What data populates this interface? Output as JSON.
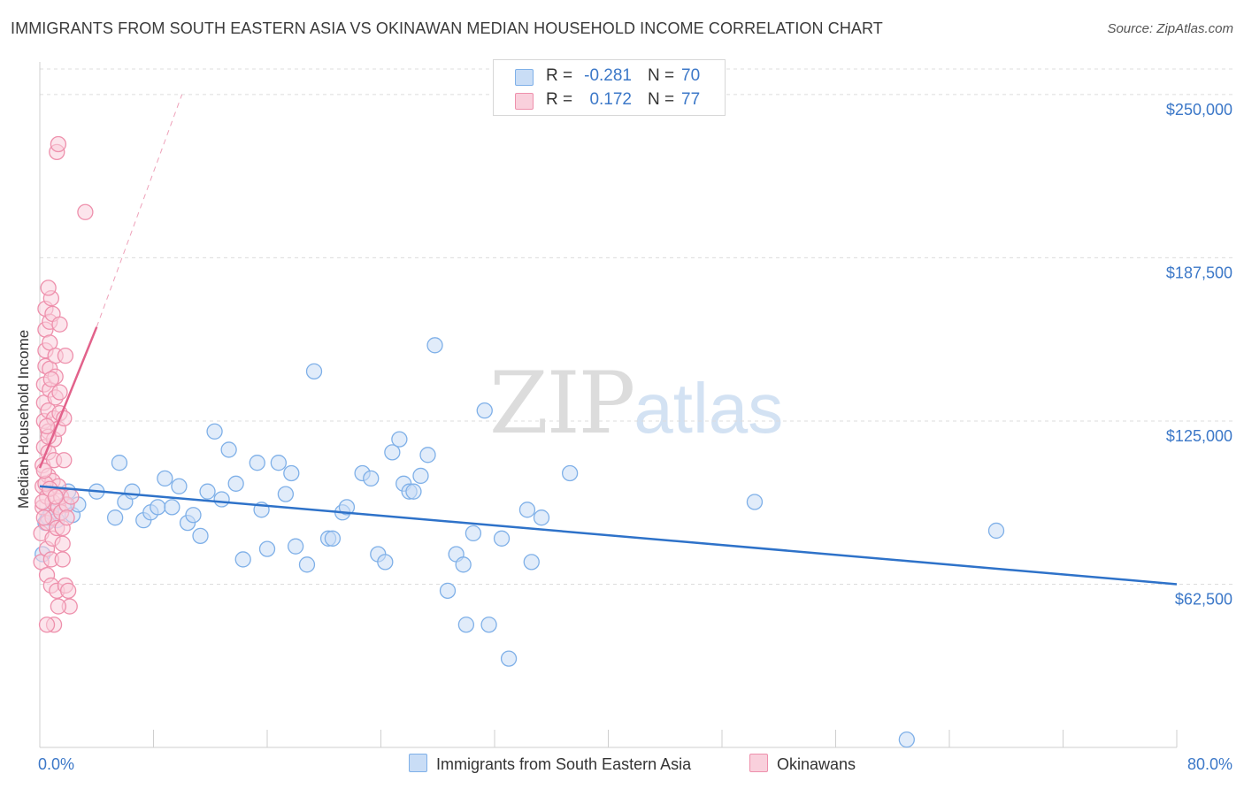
{
  "title": "IMMIGRANTS FROM SOUTH EASTERN ASIA VS OKINAWAN MEDIAN HOUSEHOLD INCOME CORRELATION CHART",
  "source": "Source: ZipAtlas.com",
  "watermark": {
    "zip": "ZIP",
    "atlas": "atlas"
  },
  "colors": {
    "blue": "#7fb0e8",
    "blue_fill": "#c9ddf6",
    "blue_line": "#2e72c9",
    "pink": "#ee90ac",
    "pink_fill": "#f9d0dc",
    "pink_line": "#e2628b",
    "accent_text": "#3c78c8"
  },
  "legend": {
    "rows": [
      {
        "r_label": "R =",
        "r_value": "-0.281",
        "n_label": "N =",
        "n_value": "70"
      },
      {
        "r_label": "R =",
        "r_value": "0.172",
        "n_label": "N =",
        "n_value": "77"
      }
    ]
  },
  "bottom_legend": [
    "Immigrants from South Eastern Asia",
    "Okinawans"
  ],
  "chart_data": {
    "type": "scatter",
    "xlabel": "",
    "ylabel": "Median Household Income",
    "xlim": [
      0,
      80
    ],
    "ylim": [
      0,
      262500
    ],
    "x_tick_labels": [
      "0.0%",
      "80.0%"
    ],
    "y_ticks": [
      62500,
      125000,
      187500,
      250000
    ],
    "y_tick_labels": [
      "$62,500",
      "$125,000",
      "$187,500",
      "$250,000"
    ],
    "grid": true,
    "legend_position": "top-center",
    "series": [
      {
        "name": "Immigrants from South Eastern Asia",
        "trend": {
          "x": [
            0,
            80
          ],
          "y": [
            100000,
            62500
          ],
          "style": "solid"
        },
        "points": [
          [
            0.2,
            74000
          ],
          [
            0.4,
            86000
          ],
          [
            0.6,
            88000
          ],
          [
            0.8,
            90000
          ],
          [
            1.2,
            87000
          ],
          [
            1.8,
            93000
          ],
          [
            2.0,
            98000
          ],
          [
            2.3,
            89000
          ],
          [
            2.7,
            93000
          ],
          [
            4.0,
            98000
          ],
          [
            5.3,
            88000
          ],
          [
            5.6,
            109000
          ],
          [
            6.0,
            94000
          ],
          [
            6.5,
            98000
          ],
          [
            7.3,
            87000
          ],
          [
            7.8,
            90000
          ],
          [
            8.3,
            92000
          ],
          [
            8.8,
            103000
          ],
          [
            9.3,
            92000
          ],
          [
            9.8,
            100000
          ],
          [
            10.4,
            86000
          ],
          [
            10.8,
            89000
          ],
          [
            11.3,
            81000
          ],
          [
            11.8,
            98000
          ],
          [
            12.3,
            121000
          ],
          [
            12.8,
            95000
          ],
          [
            13.3,
            114000
          ],
          [
            13.8,
            101000
          ],
          [
            14.3,
            72000
          ],
          [
            15.3,
            109000
          ],
          [
            15.6,
            91000
          ],
          [
            16.0,
            76000
          ],
          [
            16.8,
            109000
          ],
          [
            17.3,
            97000
          ],
          [
            17.7,
            105000
          ],
          [
            18.0,
            77000
          ],
          [
            18.8,
            70000
          ],
          [
            19.3,
            144000
          ],
          [
            20.3,
            80000
          ],
          [
            20.6,
            80000
          ],
          [
            21.3,
            90000
          ],
          [
            21.6,
            92000
          ],
          [
            22.7,
            105000
          ],
          [
            23.3,
            103000
          ],
          [
            23.8,
            74000
          ],
          [
            24.3,
            71000
          ],
          [
            24.8,
            113000
          ],
          [
            25.3,
            118000
          ],
          [
            25.6,
            101000
          ],
          [
            26.0,
            98000
          ],
          [
            26.3,
            98000
          ],
          [
            26.8,
            104000
          ],
          [
            27.3,
            112000
          ],
          [
            27.8,
            154000
          ],
          [
            28.7,
            60000
          ],
          [
            29.3,
            74000
          ],
          [
            29.8,
            70000
          ],
          [
            30.0,
            47000
          ],
          [
            30.5,
            82000
          ],
          [
            31.3,
            129000
          ],
          [
            31.6,
            47000
          ],
          [
            32.5,
            80000
          ],
          [
            33.0,
            34000
          ],
          [
            34.3,
            91000
          ],
          [
            34.6,
            71000
          ],
          [
            35.3,
            88000
          ],
          [
            37.3,
            105000
          ],
          [
            50.3,
            94000
          ],
          [
            67.3,
            83000
          ],
          [
            61.0,
            3000
          ]
        ]
      },
      {
        "name": "Okinawans",
        "trend": {
          "x": [
            0,
            4
          ],
          "y": [
            107000,
            161000
          ],
          "style": "solid",
          "dashed_extension": {
            "x": [
              4,
              10
            ],
            "y": [
              161000,
              250000
            ]
          }
        },
        "points": [
          [
            0.1,
            71000
          ],
          [
            0.1,
            82000
          ],
          [
            0.2,
            92000
          ],
          [
            0.2,
            100000
          ],
          [
            0.2,
            108000
          ],
          [
            0.3,
            115000
          ],
          [
            0.3,
            125000
          ],
          [
            0.3,
            132000
          ],
          [
            0.3,
            139000
          ],
          [
            0.4,
            146000
          ],
          [
            0.4,
            152000
          ],
          [
            0.4,
            160000
          ],
          [
            0.4,
            168000
          ],
          [
            0.5,
            66000
          ],
          [
            0.5,
            76000
          ],
          [
            0.5,
            86000
          ],
          [
            0.5,
            96000
          ],
          [
            0.6,
            104000
          ],
          [
            0.6,
            113000
          ],
          [
            0.6,
            121000
          ],
          [
            0.6,
            129000
          ],
          [
            0.7,
            137000
          ],
          [
            0.7,
            145000
          ],
          [
            0.7,
            155000
          ],
          [
            0.7,
            163000
          ],
          [
            0.8,
            172000
          ],
          [
            0.8,
            62000
          ],
          [
            0.8,
            72000
          ],
          [
            0.9,
            80000
          ],
          [
            0.9,
            88000
          ],
          [
            0.9,
            94000
          ],
          [
            0.9,
            102000
          ],
          [
            1.0,
            110000
          ],
          [
            1.0,
            118000
          ],
          [
            1.0,
            126000
          ],
          [
            1.1,
            134000
          ],
          [
            1.1,
            142000
          ],
          [
            1.1,
            150000
          ],
          [
            1.2,
            60000
          ],
          [
            1.2,
            84000
          ],
          [
            1.3,
            92000
          ],
          [
            1.3,
            100000
          ],
          [
            1.3,
            122000
          ],
          [
            1.4,
            128000
          ],
          [
            1.4,
            136000
          ],
          [
            1.5,
            96000
          ],
          [
            1.5,
            90000
          ],
          [
            1.6,
            84000
          ],
          [
            1.6,
            78000
          ],
          [
            1.7,
            110000
          ],
          [
            1.7,
            126000
          ],
          [
            1.8,
            62000
          ],
          [
            1.8,
            150000
          ],
          [
            1.9,
            93000
          ],
          [
            2.0,
            60000
          ],
          [
            2.1,
            54000
          ],
          [
            2.2,
            96000
          ],
          [
            1.3,
            54000
          ],
          [
            1.0,
            47000
          ],
          [
            0.5,
            47000
          ],
          [
            1.6,
            72000
          ],
          [
            0.3,
            88000
          ],
          [
            0.2,
            94000
          ],
          [
            0.4,
            101000
          ],
          [
            0.6,
            119000
          ],
          [
            0.9,
            166000
          ],
          [
            1.2,
            228000
          ],
          [
            1.3,
            231000
          ],
          [
            3.2,
            205000
          ],
          [
            0.7,
            99000
          ],
          [
            0.5,
            123000
          ],
          [
            0.3,
            106000
          ],
          [
            1.1,
            96000
          ],
          [
            1.9,
            88000
          ],
          [
            0.8,
            141000
          ],
          [
            1.4,
            162000
          ],
          [
            0.6,
            176000
          ]
        ]
      }
    ]
  }
}
